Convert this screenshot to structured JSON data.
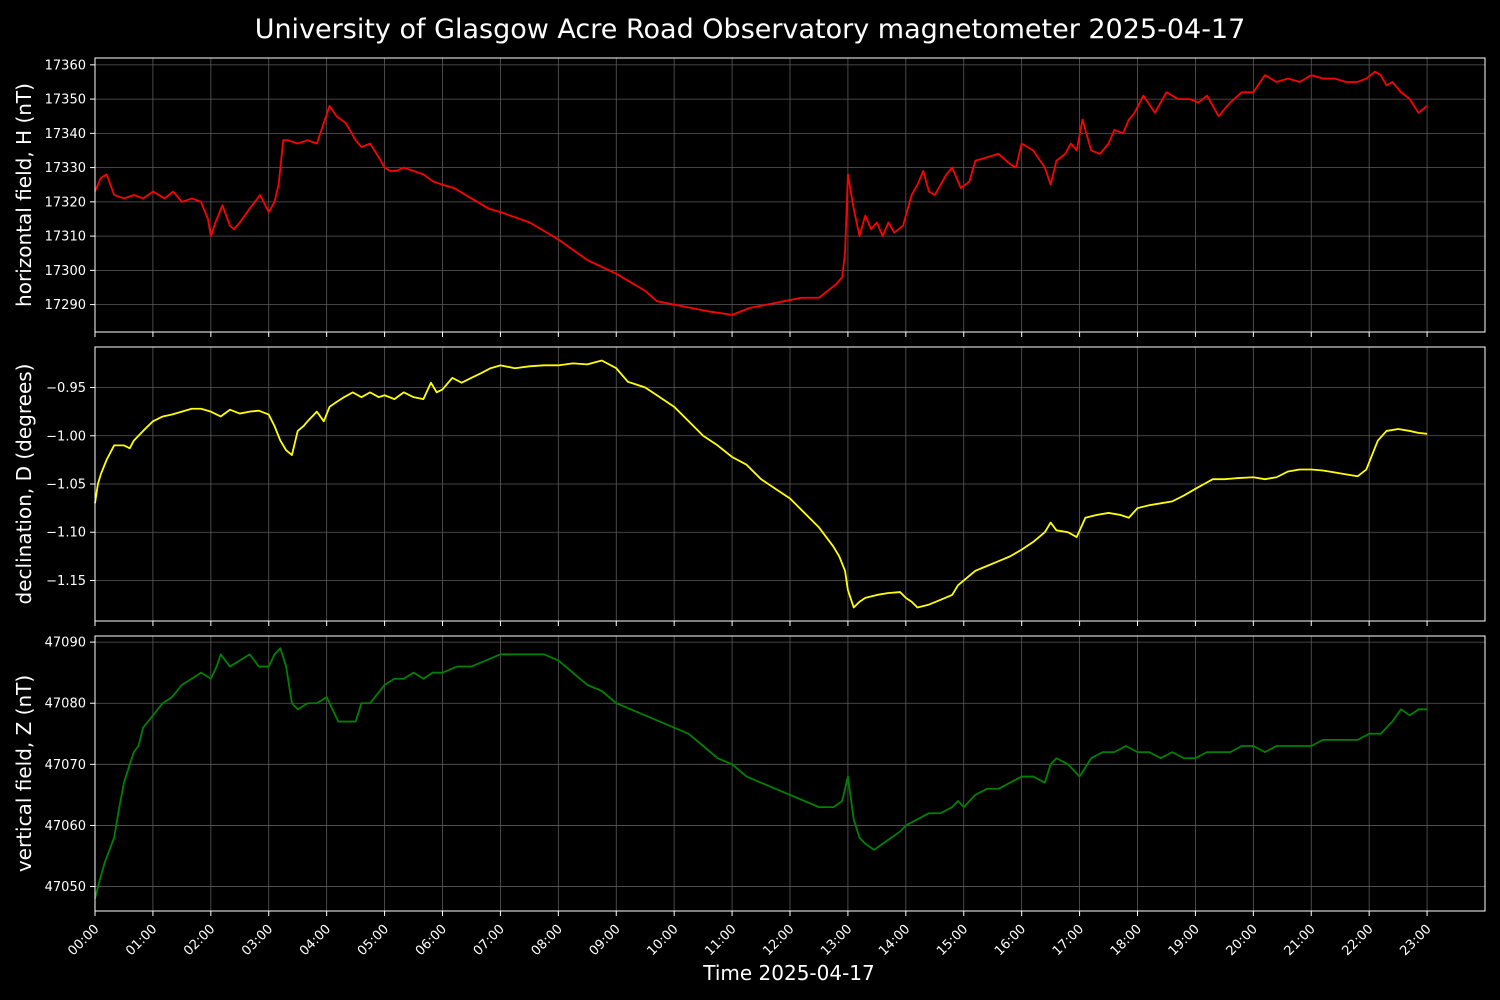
{
  "title": "University of Glasgow Acre Road Observatory magnetometer 2025-04-17",
  "chart_data": [
    {
      "type": "line",
      "name": "horizontal",
      "ylabel": "horizontal field, H (nT)",
      "color": "#ff0000",
      "xlim": [
        0,
        24
      ],
      "ylim": [
        17282,
        17362
      ],
      "yticks": [
        17290,
        17300,
        17310,
        17320,
        17330,
        17340,
        17350,
        17360
      ],
      "ytick_labels": [
        "17290",
        "17300",
        "17310",
        "17320",
        "17330",
        "17340",
        "17350",
        "17360"
      ],
      "grid": true,
      "x": [
        0.0,
        0.1,
        0.2,
        0.33,
        0.5,
        0.67,
        0.83,
        1.0,
        1.2,
        1.35,
        1.5,
        1.67,
        1.83,
        1.95,
        2.0,
        2.08,
        2.2,
        2.33,
        2.4,
        2.5,
        2.67,
        2.85,
        3.0,
        3.1,
        3.17,
        3.25,
        3.33,
        3.5,
        3.67,
        3.83,
        3.95,
        4.05,
        4.17,
        4.33,
        4.5,
        4.6,
        4.75,
        4.9,
        5.0,
        5.1,
        5.2,
        5.33,
        5.5,
        5.67,
        5.83,
        6.0,
        6.2,
        6.5,
        6.8,
        7.0,
        7.5,
        8.0,
        8.5,
        9.0,
        9.3,
        9.5,
        9.7,
        10.0,
        10.3,
        10.6,
        11.0,
        11.3,
        11.6,
        11.9,
        12.2,
        12.5,
        12.8,
        12.9,
        12.95,
        13.0,
        13.1,
        13.2,
        13.3,
        13.4,
        13.5,
        13.6,
        13.7,
        13.8,
        13.95,
        14.1,
        14.2,
        14.3,
        14.4,
        14.5,
        14.6,
        14.7,
        14.8,
        14.95,
        15.1,
        15.2,
        15.4,
        15.6,
        15.8,
        15.9,
        16.0,
        16.2,
        16.4,
        16.5,
        16.6,
        16.75,
        16.85,
        16.95,
        17.05,
        17.2,
        17.35,
        17.5,
        17.6,
        17.75,
        17.85,
        17.95,
        18.1,
        18.3,
        18.5,
        18.7,
        18.9,
        19.05,
        19.2,
        19.4,
        19.6,
        19.8,
        20.0,
        20.2,
        20.4,
        20.6,
        20.8,
        21.0,
        21.2,
        21.4,
        21.6,
        21.8,
        21.95,
        22.1,
        22.2,
        22.3,
        22.4,
        22.55,
        22.7,
        22.85,
        23.0
      ],
      "y": [
        17323,
        17327,
        17328,
        17322,
        17321,
        17322,
        17321,
        17323,
        17321,
        17323,
        17320,
        17321,
        17320,
        17315,
        17310,
        17314,
        17319,
        17313,
        17312,
        17314,
        17318,
        17322,
        17317,
        17320,
        17325,
        17338,
        17338,
        17337,
        17338,
        17337,
        17343,
        17348,
        17345,
        17343,
        17338,
        17336,
        17337,
        17333,
        17330,
        17329,
        17329,
        17330,
        17329,
        17328,
        17326,
        17325,
        17324,
        17321,
        17318,
        17317,
        17314,
        17309,
        17303,
        17299,
        17296,
        17294,
        17291,
        17290,
        17289,
        17288,
        17287,
        17289,
        17290,
        17291,
        17292,
        17292,
        17296,
        17298,
        17305,
        17328,
        17318,
        17310,
        17316,
        17312,
        17314,
        17310,
        17314,
        17311,
        17313,
        17322,
        17325,
        17329,
        17323,
        17322,
        17325,
        17328,
        17330,
        17324,
        17326,
        17332,
        17333,
        17334,
        17331,
        17330,
        17337,
        17335,
        17330,
        17325,
        17332,
        17334,
        17337,
        17335,
        17344,
        17335,
        17334,
        17337,
        17341,
        17340,
        17344,
        17346,
        17351,
        17346,
        17352,
        17350,
        17350,
        17349,
        17351,
        17345,
        17349,
        17352,
        17352,
        17357,
        17355,
        17356,
        17355,
        17357,
        17356,
        17356,
        17355,
        17355,
        17356,
        17358,
        17357,
        17354,
        17355,
        17352,
        17350,
        17346,
        17348
      ]
    },
    {
      "type": "line",
      "name": "declination",
      "ylabel": "declination, D (degrees)",
      "color": "#ffff00",
      "xlim": [
        0,
        24
      ],
      "ylim": [
        -1.192,
        -0.908
      ],
      "yticks": [
        -1.15,
        -1.1,
        -1.05,
        -1.0,
        -0.95
      ],
      "ytick_labels": [
        "−1.15",
        "−1.10",
        "−1.05",
        "−1.00",
        "−0.95"
      ],
      "grid": true,
      "x": [
        0.0,
        0.05,
        0.1,
        0.2,
        0.33,
        0.5,
        0.6,
        0.67,
        0.83,
        1.0,
        1.17,
        1.33,
        1.5,
        1.67,
        1.83,
        2.0,
        2.17,
        2.33,
        2.5,
        2.67,
        2.83,
        3.0,
        3.1,
        3.2,
        3.3,
        3.4,
        3.5,
        3.6,
        3.67,
        3.75,
        3.83,
        3.95,
        4.05,
        4.17,
        4.3,
        4.45,
        4.6,
        4.75,
        4.9,
        5.0,
        5.17,
        5.33,
        5.5,
        5.67,
        5.8,
        5.9,
        6.0,
        6.17,
        6.33,
        6.5,
        6.67,
        6.83,
        7.0,
        7.25,
        7.5,
        7.75,
        8.0,
        8.25,
        8.5,
        8.75,
        9.0,
        9.2,
        9.5,
        9.75,
        10.0,
        10.25,
        10.5,
        10.75,
        11.0,
        11.25,
        11.5,
        11.75,
        12.0,
        12.25,
        12.5,
        12.75,
        12.85,
        12.95,
        13.0,
        13.1,
        13.2,
        13.3,
        13.5,
        13.7,
        13.9,
        14.0,
        14.1,
        14.2,
        14.4,
        14.6,
        14.8,
        14.9,
        15.0,
        15.2,
        15.4,
        15.6,
        15.8,
        16.0,
        16.2,
        16.4,
        16.5,
        16.6,
        16.8,
        16.95,
        17.1,
        17.3,
        17.5,
        17.7,
        17.85,
        18.0,
        18.2,
        18.4,
        18.6,
        18.8,
        19.0,
        19.15,
        19.3,
        19.5,
        19.7,
        20.0,
        20.2,
        20.4,
        20.6,
        20.8,
        21.0,
        21.2,
        21.4,
        21.6,
        21.8,
        21.95,
        22.05,
        22.15,
        22.3,
        22.5,
        22.7,
        22.85,
        23.0
      ],
      "y": [
        -1.07,
        -1.05,
        -1.04,
        -1.025,
        -1.01,
        -1.01,
        -1.013,
        -1.005,
        -0.995,
        -0.985,
        -0.98,
        -0.978,
        -0.975,
        -0.972,
        -0.972,
        -0.975,
        -0.98,
        -0.973,
        -0.977,
        -0.975,
        -0.974,
        -0.978,
        -0.99,
        -1.005,
        -1.015,
        -1.02,
        -0.995,
        -0.99,
        -0.985,
        -0.98,
        -0.975,
        -0.985,
        -0.97,
        -0.965,
        -0.96,
        -0.955,
        -0.96,
        -0.955,
        -0.96,
        -0.958,
        -0.962,
        -0.955,
        -0.96,
        -0.962,
        -0.945,
        -0.955,
        -0.952,
        -0.94,
        -0.945,
        -0.94,
        -0.935,
        -0.93,
        -0.927,
        -0.93,
        -0.928,
        -0.927,
        -0.927,
        -0.925,
        -0.926,
        -0.922,
        -0.93,
        -0.944,
        -0.95,
        -0.96,
        -0.97,
        -0.985,
        -1.0,
        -1.01,
        -1.022,
        -1.03,
        -1.045,
        -1.055,
        -1.065,
        -1.08,
        -1.095,
        -1.115,
        -1.125,
        -1.14,
        -1.16,
        -1.178,
        -1.172,
        -1.168,
        -1.165,
        -1.163,
        -1.162,
        -1.168,
        -1.172,
        -1.178,
        -1.175,
        -1.17,
        -1.165,
        -1.155,
        -1.15,
        -1.14,
        -1.135,
        -1.13,
        -1.125,
        -1.118,
        -1.11,
        -1.1,
        -1.09,
        -1.098,
        -1.1,
        -1.105,
        -1.085,
        -1.082,
        -1.08,
        -1.082,
        -1.085,
        -1.075,
        -1.072,
        -1.07,
        -1.068,
        -1.062,
        -1.055,
        -1.05,
        -1.045,
        -1.045,
        -1.044,
        -1.043,
        -1.045,
        -1.043,
        -1.037,
        -1.035,
        -1.035,
        -1.036,
        -1.038,
        -1.04,
        -1.042,
        -1.035,
        -1.02,
        -1.005,
        -0.995,
        -0.993,
        -0.995,
        -0.997,
        -0.998
      ]
    },
    {
      "type": "line",
      "name": "vertical",
      "ylabel": "vertical field, Z (nT)",
      "color": "#008000",
      "xlim": [
        0,
        24
      ],
      "ylim": [
        47046,
        47091
      ],
      "yticks": [
        47050,
        47060,
        47070,
        47080,
        47090
      ],
      "ytick_labels": [
        "47050",
        "47060",
        "47070",
        "47080",
        "47090"
      ],
      "xticks": [
        0,
        1,
        2,
        3,
        4,
        5,
        6,
        7,
        8,
        9,
        10,
        11,
        12,
        13,
        14,
        15,
        16,
        17,
        18,
        19,
        20,
        21,
        22,
        23
      ],
      "xtick_labels": [
        "00:00",
        "01:00",
        "02:00",
        "03:00",
        "04:00",
        "05:00",
        "06:00",
        "07:00",
        "08:00",
        "09:00",
        "10:00",
        "11:00",
        "12:00",
        "13:00",
        "14:00",
        "15:00",
        "16:00",
        "17:00",
        "18:00",
        "19:00",
        "20:00",
        "21:00",
        "22:00",
        "23:00"
      ],
      "xlabel": "Time 2025-04-17",
      "grid": true,
      "x": [
        0.0,
        0.08,
        0.17,
        0.25,
        0.33,
        0.42,
        0.5,
        0.6,
        0.67,
        0.75,
        0.83,
        1.0,
        1.17,
        1.33,
        1.5,
        1.67,
        1.83,
        2.0,
        2.1,
        2.17,
        2.33,
        2.5,
        2.67,
        2.83,
        3.0,
        3.1,
        3.2,
        3.3,
        3.4,
        3.5,
        3.67,
        3.83,
        4.0,
        4.1,
        4.2,
        4.33,
        4.5,
        4.6,
        4.75,
        5.0,
        5.17,
        5.33,
        5.5,
        5.67,
        5.83,
        6.0,
        6.25,
        6.5,
        6.75,
        7.0,
        7.25,
        7.5,
        7.75,
        8.0,
        8.25,
        8.5,
        8.75,
        9.0,
        9.25,
        9.5,
        9.75,
        10.0,
        10.25,
        10.5,
        10.75,
        11.0,
        11.25,
        11.5,
        11.75,
        12.0,
        12.25,
        12.5,
        12.75,
        12.9,
        13.0,
        13.1,
        13.2,
        13.3,
        13.45,
        13.6,
        13.75,
        13.9,
        14.0,
        14.2,
        14.4,
        14.6,
        14.8,
        14.9,
        15.0,
        15.2,
        15.4,
        15.6,
        15.8,
        16.0,
        16.2,
        16.4,
        16.5,
        16.6,
        16.8,
        17.0,
        17.2,
        17.4,
        17.6,
        17.8,
        18.0,
        18.2,
        18.4,
        18.6,
        18.8,
        19.0,
        19.2,
        19.4,
        19.6,
        19.8,
        20.0,
        20.2,
        20.4,
        20.6,
        20.8,
        21.0,
        21.2,
        21.4,
        21.6,
        21.8,
        22.0,
        22.2,
        22.4,
        22.55,
        22.7,
        22.85,
        23.0
      ],
      "y": [
        47048,
        47051,
        47054,
        47056,
        47058,
        47063,
        47067,
        47070,
        47072,
        47073,
        47076,
        47078,
        47080,
        47081,
        47083,
        47084,
        47085,
        47084,
        47086,
        47088,
        47086,
        47087,
        47088,
        47086,
        47086,
        47088,
        47089,
        47086,
        47080,
        47079,
        47080,
        47080,
        47081,
        47079,
        47077,
        47077,
        47077,
        47080,
        47080,
        47083,
        47084,
        47084,
        47085,
        47084,
        47085,
        47085,
        47086,
        47086,
        47087,
        47088,
        47088,
        47088,
        47088,
        47087,
        47085,
        47083,
        47082,
        47080,
        47079,
        47078,
        47077,
        47076,
        47075,
        47073,
        47071,
        47070,
        47068,
        47067,
        47066,
        47065,
        47064,
        47063,
        47063,
        47064,
        47068,
        47061,
        47058,
        47057,
        47056,
        47057,
        47058,
        47059,
        47060,
        47061,
        47062,
        47062,
        47063,
        47064,
        47063,
        47065,
        47066,
        47066,
        47067,
        47068,
        47068,
        47067,
        47070,
        47071,
        47070,
        47068,
        47071,
        47072,
        47072,
        47073,
        47072,
        47072,
        47071,
        47072,
        47071,
        47071,
        47072,
        47072,
        47072,
        47073,
        47073,
        47072,
        47073,
        47073,
        47073,
        47073,
        47074,
        47074,
        47074,
        47074,
        47075,
        47075,
        47077,
        47079,
        47078,
        47079,
        47079
      ]
    }
  ]
}
